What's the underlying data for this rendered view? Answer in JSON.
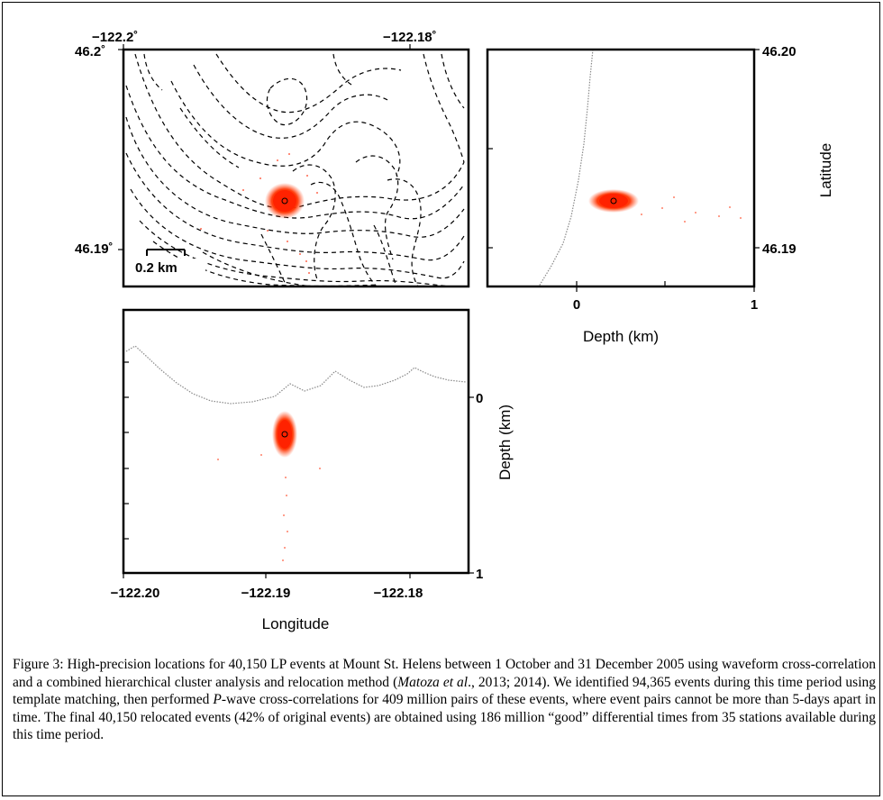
{
  "figure": {
    "map_panel": {
      "lon_top_labels": [
        "−122.2˚",
        "−122.18˚"
      ],
      "lat_left_labels": [
        "46.2˚",
        "46.19˚"
      ],
      "scale_bar_label": "0.2 km"
    },
    "depth_lat_panel": {
      "lat_labels": [
        "46.20",
        "46.19"
      ],
      "ylabel": "Latitude",
      "depth_ticks": [
        "0",
        "1"
      ],
      "xlabel": "Depth (km)"
    },
    "lon_depth_panel": {
      "lon_ticks": [
        "−122.20",
        "−122.19",
        "−122.18"
      ],
      "xlabel": "Longitude",
      "depth_ticks": [
        "0",
        "1"
      ],
      "ylabel": "Depth (km)"
    },
    "colors": {
      "events": "#ff2a00",
      "contour": "#000000"
    }
  },
  "caption": {
    "p1": "Figure 3: High-precision locations for 40,150 LP events at Mount St. Helens between 1 October and 31 December 2005 using waveform cross-correlation and a combined hierarchical cluster analysis and relocation method (",
    "cite_italic": "Matoza et al",
    "p2": "., 2013; 2014). We identified 94,365 events during this time period using template matching, then performed ",
    "p_italic": "P",
    "p3": "-wave cross-correlations for 409 million pairs of these events, where event pairs cannot be more than 5-days apart in time. The final 40,150 relocated events (42% of original events) are obtained using 186 million “good” differential times from 35 stations available during this time period."
  }
}
